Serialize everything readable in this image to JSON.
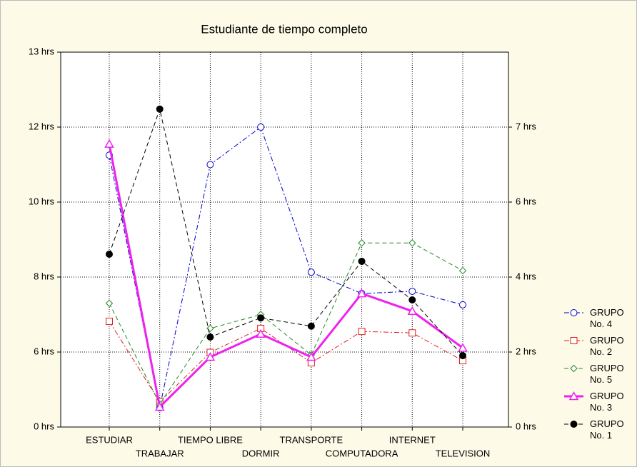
{
  "chart_data": {
    "type": "line",
    "title": "Estudiante de tiempo completo",
    "categories": [
      "ESTUDIAR",
      "TRABAJAR",
      "TIEMPO LIBRE",
      "DORMIR",
      "TRANSPORTE",
      "COMPUTADORA",
      "INTERNET",
      "TELEVISION"
    ],
    "ylim": [
      0,
      13
    ],
    "yticks": [
      {
        "value": 0,
        "label": "0 hrs"
      },
      {
        "value": 6,
        "label": "6 hrs"
      },
      {
        "value": 8,
        "label": "8 hrs"
      },
      {
        "value": 10,
        "label": "10 hrs"
      },
      {
        "value": 12,
        "label": "12 hrs"
      },
      {
        "value": 13,
        "label": "13 hrs"
      }
    ],
    "y2ticks": [
      {
        "value": 0,
        "label": "0 hrs"
      },
      {
        "value": 2,
        "label": "2 hrs"
      },
      {
        "value": 4,
        "label": "4 hrs"
      },
      {
        "value": 6,
        "label": "6 hrs"
      },
      {
        "value": 7,
        "label": "7 hrs"
      }
    ],
    "grid": true,
    "series": [
      {
        "name": "GRUPO No. 4",
        "color": "#0000cc",
        "dash": "dashdot",
        "marker": "circle",
        "width": 1,
        "values": [
          11.25,
          1.54,
          11.0,
          12.0,
          8.13,
          7.56,
          7.62,
          7.26
        ]
      },
      {
        "name": "GRUPO No. 2",
        "color": "#dd2222",
        "dash": "dashdot",
        "marker": "square",
        "width": 1,
        "values": [
          6.82,
          2.0,
          5.97,
          6.63,
          5.14,
          6.55,
          6.51,
          5.31
        ]
      },
      {
        "name": "GRUPO No. 5",
        "color": "#228822",
        "dash": "dash",
        "marker": "diamond",
        "width": 1,
        "values": [
          7.3,
          1.83,
          6.63,
          7.0,
          5.77,
          8.91,
          8.91,
          8.17
        ]
      },
      {
        "name": "GRUPO No. 3",
        "color": "#ee22ee",
        "dash": "solid",
        "marker": "triangle",
        "width": 3,
        "values": [
          11.55,
          1.6,
          5.6,
          6.48,
          5.6,
          7.56,
          7.09,
          6.11
        ]
      },
      {
        "name": "GRUPO No. 1",
        "color": "#000000",
        "dash": "dash",
        "marker": "dot",
        "width": 1,
        "values": [
          8.61,
          12.24,
          6.4,
          6.91,
          6.69,
          8.42,
          7.39,
          5.71
        ]
      }
    ]
  }
}
